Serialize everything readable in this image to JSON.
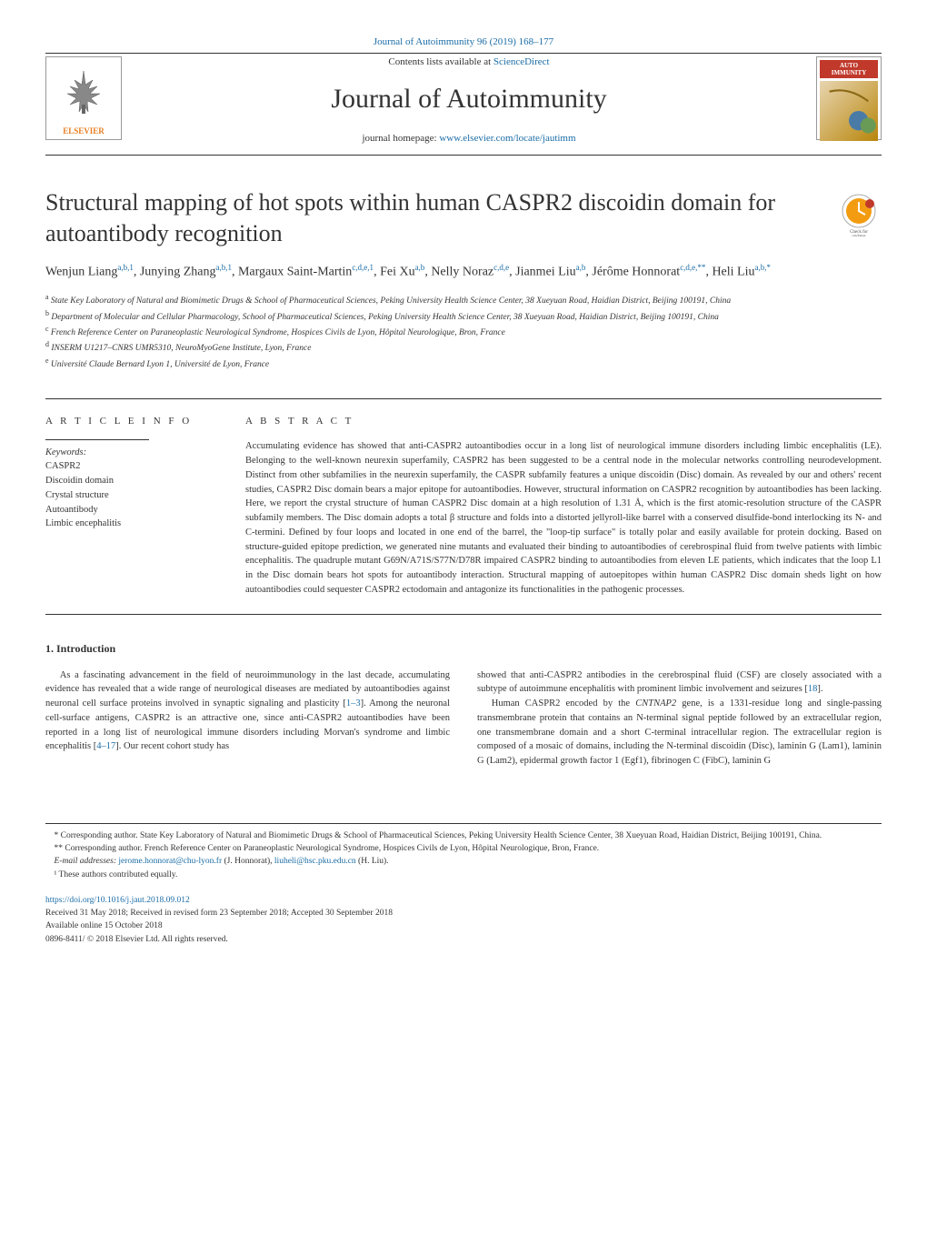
{
  "header": {
    "citation": "Journal of Autoimmunity 96 (2019) 168–177",
    "contents_prefix": "Contents lists available at ",
    "contents_link": "ScienceDirect",
    "journal_name": "Journal of Autoimmunity",
    "homepage_prefix": "journal homepage: ",
    "homepage_link": "www.elsevier.com/locate/jautimm",
    "publisher": "ELSEVIER",
    "cover_title": "AUTO IMMUNITY"
  },
  "article": {
    "title": "Structural mapping of hot spots within human CASPR2 discoidin domain for autoantibody recognition",
    "updates_label": "Check for updates"
  },
  "authors_html": "Wenjun Liang<sup>a,b,1</sup>, Junying Zhang<sup>a,b,1</sup>, Margaux Saint-Martin<sup>c,d,e,1</sup>, Fei Xu<sup>a,b</sup>, Nelly Noraz<sup>c,d,e</sup>, Jianmei Liu<sup>a,b</sup>, Jérôme Honnorat<sup>c,d,e,**</sup>, Heli Liu<sup>a,b,*</sup>",
  "affiliations": {
    "a": "State Key Laboratory of Natural and Biomimetic Drugs & School of Pharmaceutical Sciences, Peking University Health Science Center, 38 Xueyuan Road, Haidian District, Beijing 100191, China",
    "b": "Department of Molecular and Cellular Pharmacology, School of Pharmaceutical Sciences, Peking University Health Science Center, 38 Xueyuan Road, Haidian District, Beijing 100191, China",
    "c": "French Reference Center on Paraneoplastic Neurological Syndrome, Hospices Civils de Lyon, Hôpital Neurologique, Bron, France",
    "d": "INSERM U1217–CNRS UMR5310, NeuroMyoGene Institute, Lyon, France",
    "e": "Université Claude Bernard Lyon 1, Université de Lyon, France"
  },
  "info": {
    "heading": "A R T I C L E  I N F O",
    "keywords_label": "Keywords:",
    "keywords": "CASPR2\nDiscoidin domain\nCrystal structure\nAutoantibody\nLimbic encephalitis"
  },
  "abstract": {
    "heading": "A B S T R A C T",
    "text": "Accumulating evidence has showed that anti-CASPR2 autoantibodies occur in a long list of neurological immune disorders including limbic encephalitis (LE). Belonging to the well-known neurexin superfamily, CASPR2 has been suggested to be a central node in the molecular networks controlling neurodevelopment. Distinct from other subfamilies in the neurexin superfamily, the CASPR subfamily features a unique discoidin (Disc) domain. As revealed by our and others' recent studies, CASPR2 Disc domain bears a major epitope for autoantibodies. However, structural information on CASPR2 recognition by autoantibodies has been lacking. Here, we report the crystal structure of human CASPR2 Disc domain at a high resolution of 1.31 Å, which is the first atomic-resolution structure of the CASPR subfamily members. The Disc domain adopts a total β structure and folds into a distorted jellyroll-like barrel with a conserved disulfide-bond interlocking its N- and C-termini. Defined by four loops and located in one end of the barrel, the \"loop-tip surface\" is totally polar and easily available for protein docking. Based on structure-guided epitope prediction, we generated nine mutants and evaluated their binding to autoantibodies of cerebrospinal fluid from twelve patients with limbic encephalitis. The quadruple mutant G69N/A71S/S77N/D78R impaired CASPR2 binding to autoantibodies from eleven LE patients, which indicates that the loop L1 in the Disc domain bears hot spots for autoantibody interaction. Structural mapping of autoepitopes within human CASPR2 Disc domain sheds light on how autoantibodies could sequester CASPR2 ectodomain and antagonize its functionalities in the pathogenic processes."
  },
  "intro": {
    "heading": "1. Introduction",
    "col1_html": "As a fascinating advancement in the field of neuroimmunology in the last decade, accumulating evidence has revealed that a wide range of neurological diseases are mediated by autoantibodies against neuronal cell surface proteins involved in synaptic signaling and plasticity [<a class='ref-link'>1–3</a>]. Among the neuronal cell-surface antigens, CASPR2 is an attractive one, since anti-CASPR2 autoantibodies have been reported in a long list of neurological immune disorders including Morvan's syndrome and limbic encephalitis [<a class='ref-link'>4–17</a>]. Our recent cohort study has",
    "col2_html": "showed that anti-CASPR2 antibodies in the cerebrospinal fluid (CSF) are closely associated with a subtype of autoimmune encephalitis with prominent limbic involvement and seizures [<a class='ref-link'>18</a>].</p><p>Human CASPR2 encoded by the <span class='italic'>CNTNAP2</span> gene, is a 1331-residue long and single-passing transmembrane protein that contains an N-terminal signal peptide followed by an extracellular region, one transmembrane domain and a short C-terminal intracellular region. The extracellular region is composed of a mosaic of domains, including the N-terminal discoidin (Disc), laminin G (Lam1), laminin G (Lam2), epidermal growth factor 1 (Egf1), fibrinogen C (FibC), laminin G"
  },
  "footer": {
    "corr1": "* Corresponding author. State Key Laboratory of Natural and Biomimetic Drugs & School of Pharmaceutical Sciences, Peking University Health Science Center, 38 Xueyuan Road, Haidian District, Beijing 100191, China.",
    "corr2": "** Corresponding author. French Reference Center on Paraneoplastic Neurological Syndrome, Hospices Civils de Lyon, Hôpital Neurologique, Bron, France.",
    "emails_prefix": "E-mail addresses: ",
    "email1": "jerome.honnorat@chu-lyon.fr",
    "email1_name": " (J. Honnorat), ",
    "email2": "liuheli@hsc.pku.edu.cn",
    "email2_name": " (H. Liu).",
    "equal": "¹ These authors contributed equally.",
    "doi": "https://doi.org/10.1016/j.jaut.2018.09.012",
    "received": "Received 31 May 2018; Received in revised form 23 September 2018; Accepted 30 September 2018",
    "available": "Available online 15 October 2018",
    "copyright": "0896-8411/ © 2018 Elsevier Ltd. All rights reserved."
  },
  "colors": {
    "link": "#1a6ca6",
    "text": "#333333",
    "publisher": "#e67e22",
    "cover_accent": "#c0392b"
  }
}
